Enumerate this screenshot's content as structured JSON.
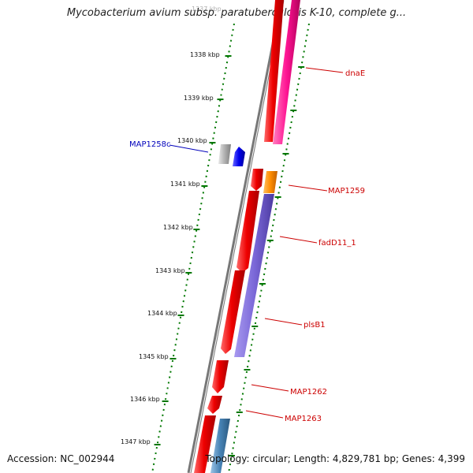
{
  "title": "Mycobacterium avium subsp. paratuberculosis K-10, complete g...",
  "footer": {
    "accession": "Accession: NC_002944",
    "topology": "Topology: circular; Length: 4,829,781 bp; Genes: 4,399"
  },
  "colors": {
    "forward_gene": "#ee0000",
    "reverse_gene_blue": "#0000ee",
    "gray_feature": "#b0b0b0",
    "orange_feature": "#ff8c00",
    "purple_feature": "#7b68d8",
    "pink_feature": "#ff1493",
    "steelblue_feature": "#4682b4",
    "tick_green": "#007700",
    "label_red": "#cc0000",
    "label_blue": "#0000bb"
  },
  "scale": {
    "labels": [
      "1337 kbp",
      "1338 kbp",
      "1339 kbp",
      "1340 kbp",
      "1341 kbp",
      "1342 kbp",
      "1343 kbp",
      "1344 kbp",
      "1345 kbp",
      "1346 kbp",
      "1347 kbp"
    ]
  },
  "genes": [
    {
      "name": "dnaE",
      "label_color": "#cc0000"
    },
    {
      "name": "MAP1258c",
      "label_color": "#0000bb"
    },
    {
      "name": "MAP1259",
      "label_color": "#cc0000"
    },
    {
      "name": "fadD11_1",
      "label_color": "#cc0000"
    },
    {
      "name": "plsB1",
      "label_color": "#cc0000"
    },
    {
      "name": "MAP1262",
      "label_color": "#cc0000"
    },
    {
      "name": "MAP1263",
      "label_color": "#cc0000"
    }
  ]
}
